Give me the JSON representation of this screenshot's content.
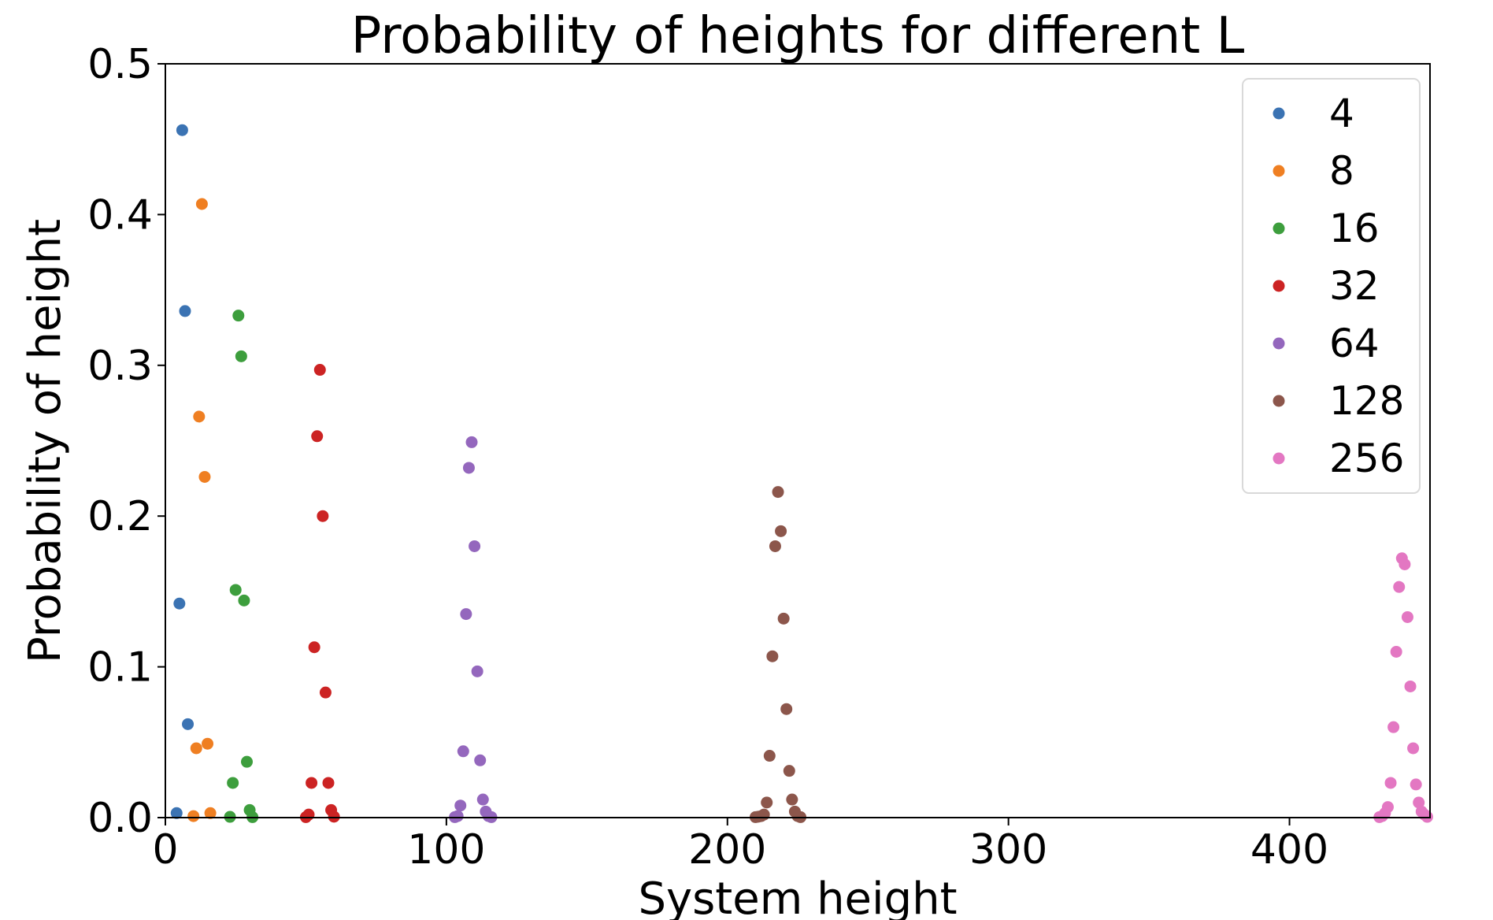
{
  "chart_data": {
    "type": "scatter",
    "title": "Probability of heights for different L",
    "xlabel": "System height",
    "ylabel": "Probability of height",
    "xlim": [
      0,
      450
    ],
    "ylim": [
      0,
      0.5
    ],
    "xticks": [
      "0",
      "100",
      "200",
      "300",
      "400"
    ],
    "yticks": [
      "0.0",
      "0.1",
      "0.2",
      "0.3",
      "0.4",
      "0.5"
    ],
    "grid": false,
    "legend_position": "top-right",
    "series": [
      {
        "name": "4",
        "color": "#3b73b3",
        "points": [
          [
            4,
            0.003
          ],
          [
            5,
            0.142
          ],
          [
            6,
            0.456
          ],
          [
            7,
            0.336
          ],
          [
            8,
            0.062
          ]
        ]
      },
      {
        "name": "8",
        "color": "#ef7f22",
        "points": [
          [
            10,
            0.001
          ],
          [
            11,
            0.046
          ],
          [
            12,
            0.266
          ],
          [
            13,
            0.407
          ],
          [
            14,
            0.226
          ],
          [
            15,
            0.049
          ],
          [
            16,
            0.003
          ]
        ]
      },
      {
        "name": "16",
        "color": "#3d9e3d",
        "points": [
          [
            23,
            0.0005
          ],
          [
            24,
            0.023
          ],
          [
            25,
            0.151
          ],
          [
            26,
            0.333
          ],
          [
            27,
            0.306
          ],
          [
            28,
            0.144
          ],
          [
            29,
            0.037
          ],
          [
            30,
            0.005
          ],
          [
            31,
            0.0003
          ]
        ]
      },
      {
        "name": "32",
        "color": "#cc2323",
        "points": [
          [
            50,
            0.0003
          ],
          [
            51,
            0.002
          ],
          [
            52,
            0.023
          ],
          [
            53,
            0.113
          ],
          [
            54,
            0.253
          ],
          [
            55,
            0.297
          ],
          [
            56,
            0.2
          ],
          [
            57,
            0.083
          ],
          [
            58,
            0.023
          ],
          [
            59,
            0.005
          ],
          [
            60,
            0.0006
          ]
        ]
      },
      {
        "name": "64",
        "color": "#9467bd",
        "points": [
          [
            103,
            0.0003
          ],
          [
            104,
            0.001
          ],
          [
            105,
            0.008
          ],
          [
            106,
            0.044
          ],
          [
            107,
            0.135
          ],
          [
            108,
            0.232
          ],
          [
            109,
            0.249
          ],
          [
            110,
            0.18
          ],
          [
            111,
            0.097
          ],
          [
            112,
            0.038
          ],
          [
            113,
            0.012
          ],
          [
            114,
            0.004
          ],
          [
            115,
            0.001
          ],
          [
            116,
            0.0003
          ]
        ]
      },
      {
        "name": "128",
        "color": "#8c564b",
        "points": [
          [
            210,
            0.0003
          ],
          [
            211,
            0.0006
          ],
          [
            212,
            0.001
          ],
          [
            213,
            0.002
          ],
          [
            214,
            0.01
          ],
          [
            215,
            0.041
          ],
          [
            216,
            0.107
          ],
          [
            217,
            0.18
          ],
          [
            218,
            0.216
          ],
          [
            219,
            0.19
          ],
          [
            220,
            0.132
          ],
          [
            221,
            0.072
          ],
          [
            222,
            0.031
          ],
          [
            223,
            0.012
          ],
          [
            224,
            0.004
          ],
          [
            225,
            0.001
          ],
          [
            226,
            0.0003
          ]
        ]
      },
      {
        "name": "256",
        "color": "#e377c2",
        "points": [
          [
            432,
            0.0003
          ],
          [
            433,
            0.001
          ],
          [
            434,
            0.003
          ],
          [
            435,
            0.007
          ],
          [
            436,
            0.023
          ],
          [
            437,
            0.06
          ],
          [
            438,
            0.11
          ],
          [
            439,
            0.153
          ],
          [
            440,
            0.172
          ],
          [
            441,
            0.168
          ],
          [
            442,
            0.133
          ],
          [
            443,
            0.087
          ],
          [
            444,
            0.046
          ],
          [
            445,
            0.022
          ],
          [
            446,
            0.01
          ],
          [
            447,
            0.004
          ],
          [
            448,
            0.002
          ],
          [
            449,
            0.0005
          ]
        ]
      }
    ]
  }
}
